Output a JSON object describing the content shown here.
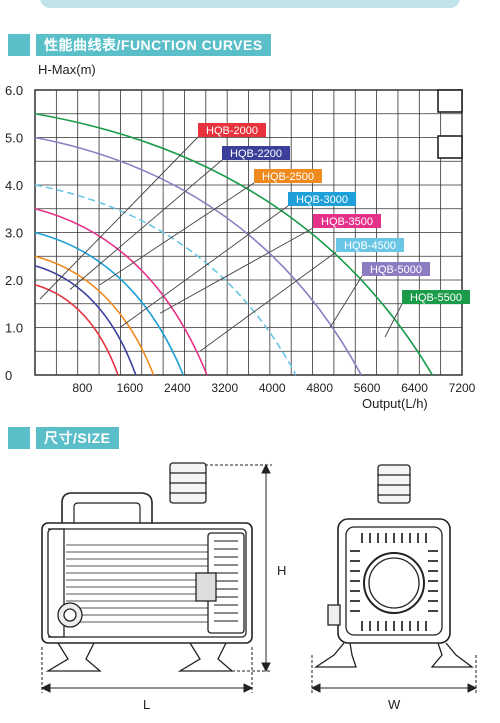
{
  "curves_section": {
    "title": "性能曲线表/FUNCTION CURVES"
  },
  "size_section": {
    "title": "尺寸/SIZE"
  },
  "chart_data": {
    "type": "line",
    "ylabel": "H-Max(m)",
    "xlabel": "Output(L/h)",
    "xlim": [
      0,
      7200
    ],
    "ylim": [
      0,
      6.0
    ],
    "x_ticks": [
      "800",
      "1600",
      "2400",
      "3200",
      "4000",
      "4800",
      "5600",
      "6400",
      "7200"
    ],
    "y_ticks": [
      "0",
      "1.0",
      "2.0",
      "3.0",
      "4.0",
      "5.0",
      "6.0"
    ],
    "grid": true,
    "series": [
      {
        "name": "HQB-2000",
        "color": "#e8323c",
        "x": [
          0,
          1400
        ],
        "y": [
          1.9,
          0
        ]
      },
      {
        "name": "HQB-2200",
        "color": "#3a3f9a",
        "x": [
          0,
          1700
        ],
        "y": [
          2.3,
          0
        ]
      },
      {
        "name": "HQB-2500",
        "color": "#f08a1e",
        "x": [
          0,
          2000
        ],
        "y": [
          2.5,
          0
        ]
      },
      {
        "name": "HQB-3000",
        "color": "#1e9fd8",
        "x": [
          0,
          2500
        ],
        "y": [
          3.0,
          0
        ]
      },
      {
        "name": "HQB-3500",
        "color": "#e6318a",
        "x": [
          0,
          2900
        ],
        "y": [
          3.5,
          0
        ]
      },
      {
        "name": "HQB-4500",
        "color": "#6bc6e6",
        "x": [
          0,
          4400
        ],
        "y": [
          4.0,
          0
        ]
      },
      {
        "name": "HQB-5000",
        "color": "#8e7cc3",
        "x": [
          0,
          5500
        ],
        "y": [
          5.0,
          0
        ]
      },
      {
        "name": "HQB-5500",
        "color": "#1a9c4a",
        "x": [
          0,
          6700
        ],
        "y": [
          5.5,
          0
        ]
      }
    ]
  },
  "size_labels": {
    "height": "H",
    "length": "L",
    "width": "W"
  }
}
